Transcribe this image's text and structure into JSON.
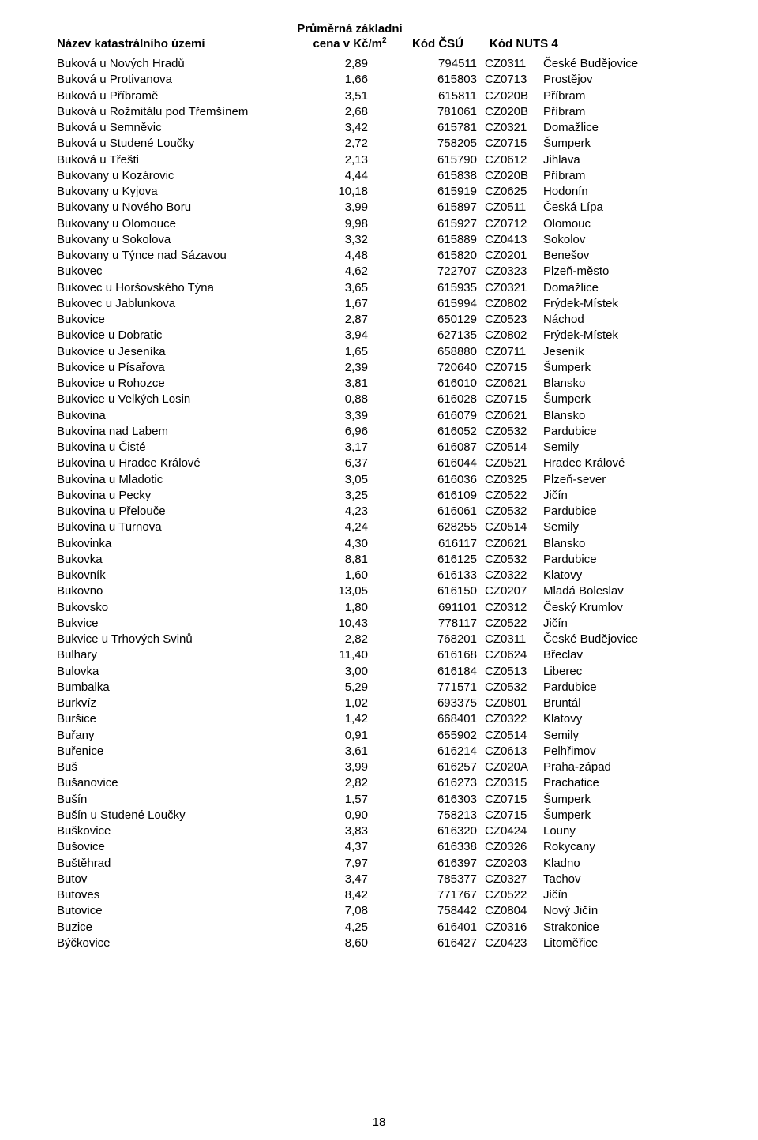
{
  "header": {
    "col_name": "Název katastrálního území",
    "col_price_line1": "Průměrná základní",
    "col_price_line2_prefix": "cena v Kč/m",
    "col_price_line2_sup": "2",
    "col_csu": "Kód ČSÚ",
    "col_nuts": "Kód NUTS 4"
  },
  "page_number": "18",
  "table": {
    "columns": [
      "Název katastrálního území",
      "cena v Kč/m²",
      "Kód ČSÚ",
      "Kód NUTS 4 code",
      "Kód NUTS 4 name"
    ],
    "rows": [
      [
        "Buková u Nových Hradů",
        "2,89",
        "794511",
        "CZ0311",
        "České Budějovice"
      ],
      [
        "Buková u Protivanova",
        "1,66",
        "615803",
        "CZ0713",
        "Prostějov"
      ],
      [
        "Buková u Příbramě",
        "3,51",
        "615811",
        "CZ020B",
        "Příbram"
      ],
      [
        "Buková u Rožmitálu pod Třemšínem",
        "2,68",
        "781061",
        "CZ020B",
        "Příbram"
      ],
      [
        "Buková u Semněvic",
        "3,42",
        "615781",
        "CZ0321",
        "Domažlice"
      ],
      [
        "Buková u Studené Loučky",
        "2,72",
        "758205",
        "CZ0715",
        "Šumperk"
      ],
      [
        "Buková u Třešti",
        "2,13",
        "615790",
        "CZ0612",
        "Jihlava"
      ],
      [
        "Bukovany u Kozárovic",
        "4,44",
        "615838",
        "CZ020B",
        "Příbram"
      ],
      [
        "Bukovany u Kyjova",
        "10,18",
        "615919",
        "CZ0625",
        "Hodonín"
      ],
      [
        "Bukovany u Nového Boru",
        "3,99",
        "615897",
        "CZ0511",
        "Česká Lípa"
      ],
      [
        "Bukovany u Olomouce",
        "9,98",
        "615927",
        "CZ0712",
        "Olomouc"
      ],
      [
        "Bukovany u Sokolova",
        "3,32",
        "615889",
        "CZ0413",
        "Sokolov"
      ],
      [
        "Bukovany u Týnce nad Sázavou",
        "4,48",
        "615820",
        "CZ0201",
        "Benešov"
      ],
      [
        "Bukovec",
        "4,62",
        "722707",
        "CZ0323",
        "Plzeň-město"
      ],
      [
        "Bukovec u Horšovského Týna",
        "3,65",
        "615935",
        "CZ0321",
        "Domažlice"
      ],
      [
        "Bukovec u Jablunkova",
        "1,67",
        "615994",
        "CZ0802",
        "Frýdek-Místek"
      ],
      [
        "Bukovice",
        "2,87",
        "650129",
        "CZ0523",
        "Náchod"
      ],
      [
        "Bukovice u Dobratic",
        "3,94",
        "627135",
        "CZ0802",
        "Frýdek-Místek"
      ],
      [
        "Bukovice u Jeseníka",
        "1,65",
        "658880",
        "CZ0711",
        "Jeseník"
      ],
      [
        "Bukovice u Písařova",
        "2,39",
        "720640",
        "CZ0715",
        "Šumperk"
      ],
      [
        "Bukovice u Rohozce",
        "3,81",
        "616010",
        "CZ0621",
        "Blansko"
      ],
      [
        "Bukovice u Velkých Losin",
        "0,88",
        "616028",
        "CZ0715",
        "Šumperk"
      ],
      [
        "Bukovina",
        "3,39",
        "616079",
        "CZ0621",
        "Blansko"
      ],
      [
        "Bukovina nad Labem",
        "6,96",
        "616052",
        "CZ0532",
        "Pardubice"
      ],
      [
        "Bukovina u Čisté",
        "3,17",
        "616087",
        "CZ0514",
        "Semily"
      ],
      [
        "Bukovina u Hradce Králové",
        "6,37",
        "616044",
        "CZ0521",
        "Hradec Králové"
      ],
      [
        "Bukovina u Mladotic",
        "3,05",
        "616036",
        "CZ0325",
        "Plzeň-sever"
      ],
      [
        "Bukovina u Pecky",
        "3,25",
        "616109",
        "CZ0522",
        "Jičín"
      ],
      [
        "Bukovina u Přelouče",
        "4,23",
        "616061",
        "CZ0532",
        "Pardubice"
      ],
      [
        "Bukovina u Turnova",
        "4,24",
        "628255",
        "CZ0514",
        "Semily"
      ],
      [
        "Bukovinka",
        "4,30",
        "616117",
        "CZ0621",
        "Blansko"
      ],
      [
        "Bukovka",
        "8,81",
        "616125",
        "CZ0532",
        "Pardubice"
      ],
      [
        "Bukovník",
        "1,60",
        "616133",
        "CZ0322",
        "Klatovy"
      ],
      [
        "Bukovno",
        "13,05",
        "616150",
        "CZ0207",
        "Mladá Boleslav"
      ],
      [
        "Bukovsko",
        "1,80",
        "691101",
        "CZ0312",
        "Český Krumlov"
      ],
      [
        "Bukvice",
        "10,43",
        "778117",
        "CZ0522",
        "Jičín"
      ],
      [
        "Bukvice u Trhových Svinů",
        "2,82",
        "768201",
        "CZ0311",
        "České Budějovice"
      ],
      [
        "Bulhary",
        "11,40",
        "616168",
        "CZ0624",
        "Břeclav"
      ],
      [
        "Bulovka",
        "3,00",
        "616184",
        "CZ0513",
        "Liberec"
      ],
      [
        "Bumbalka",
        "5,29",
        "771571",
        "CZ0532",
        "Pardubice"
      ],
      [
        "Burkvíz",
        "1,02",
        "693375",
        "CZ0801",
        "Bruntál"
      ],
      [
        "Buršice",
        "1,42",
        "668401",
        "CZ0322",
        "Klatovy"
      ],
      [
        "Buřany",
        "0,91",
        "655902",
        "CZ0514",
        "Semily"
      ],
      [
        "Buřenice",
        "3,61",
        "616214",
        "CZ0613",
        "Pelhřimov"
      ],
      [
        "Buš",
        "3,99",
        "616257",
        "CZ020A",
        "Praha-západ"
      ],
      [
        "Bušanovice",
        "2,82",
        "616273",
        "CZ0315",
        "Prachatice"
      ],
      [
        "Bušín",
        "1,57",
        "616303",
        "CZ0715",
        "Šumperk"
      ],
      [
        "Bušín u Studené Loučky",
        "0,90",
        "758213",
        "CZ0715",
        "Šumperk"
      ],
      [
        "Buškovice",
        "3,83",
        "616320",
        "CZ0424",
        "Louny"
      ],
      [
        "Bušovice",
        "4,37",
        "616338",
        "CZ0326",
        "Rokycany"
      ],
      [
        "Buštěhrad",
        "7,97",
        "616397",
        "CZ0203",
        "Kladno"
      ],
      [
        "Butov",
        "3,47",
        "785377",
        "CZ0327",
        "Tachov"
      ],
      [
        "Butoves",
        "8,42",
        "771767",
        "CZ0522",
        "Jičín"
      ],
      [
        "Butovice",
        "7,08",
        "758442",
        "CZ0804",
        "Nový Jičín"
      ],
      [
        "Buzice",
        "4,25",
        "616401",
        "CZ0316",
        "Strakonice"
      ],
      [
        "Býčkovice",
        "8,60",
        "616427",
        "CZ0423",
        "Litoměřice"
      ]
    ]
  }
}
